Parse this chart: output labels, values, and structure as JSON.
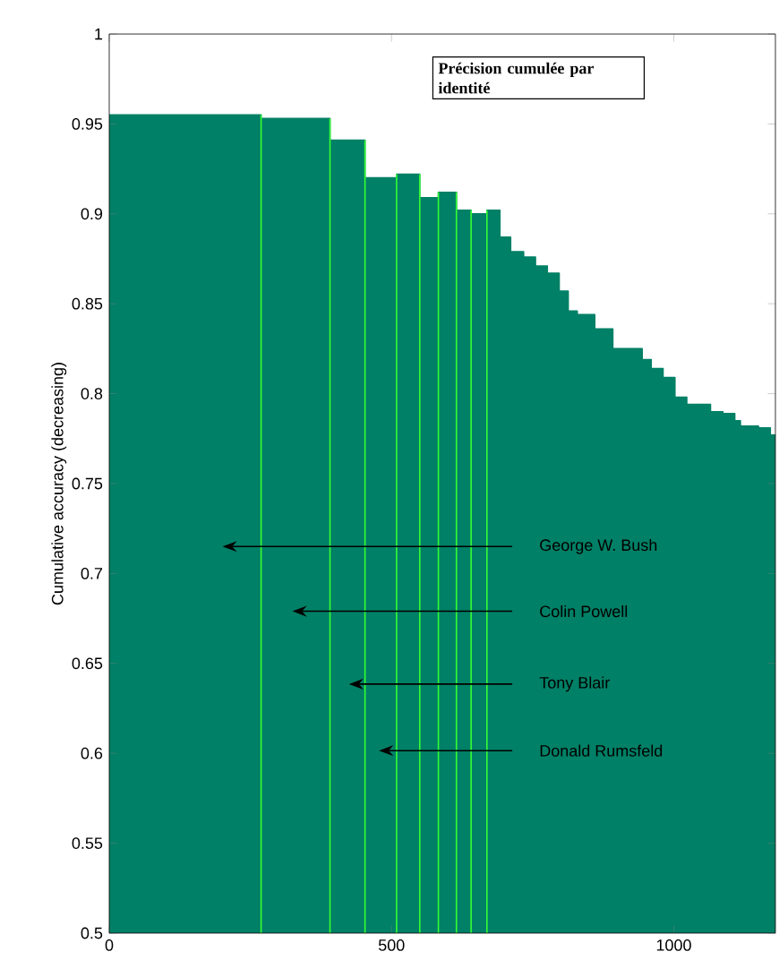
{
  "chart_data": {
    "type": "step",
    "title": "Précision cumulée par identité",
    "ylabel": "Cumulative accuracy (decreasing)",
    "x": [
      0,
      269,
      391,
      453,
      509,
      550,
      583,
      615,
      641,
      669,
      692,
      711,
      734,
      755,
      776,
      797,
      813,
      829,
      860,
      892,
      944,
      960,
      981,
      1002,
      1023,
      1039,
      1065,
      1087,
      1108,
      1118,
      1150,
      1171,
      1180
    ],
    "values": [
      0.955,
      0.953,
      0.941,
      0.92,
      0.922,
      0.909,
      0.912,
      0.902,
      0.9,
      0.902,
      0.887,
      0.879,
      0.876,
      0.871,
      0.867,
      0.857,
      0.846,
      0.844,
      0.836,
      0.825,
      0.819,
      0.814,
      0.809,
      0.798,
      0.794,
      0.794,
      0.79,
      0.789,
      0.785,
      0.782,
      0.781,
      0.777,
      0.777
    ],
    "color": "#008066",
    "xlim": [
      0,
      1180
    ],
    "ylim": [
      0.5,
      1
    ],
    "xticks": [
      0,
      500,
      1000
    ],
    "yticks": [
      0.5,
      0.55,
      0.6,
      0.65,
      0.7,
      0.75,
      0.8,
      0.85,
      0.9,
      0.95,
      1
    ],
    "ref_lines": [
      {
        "axis": "x",
        "value": 269,
        "color": "#33ff33"
      },
      {
        "axis": "x",
        "value": 391,
        "color": "#33ff33"
      },
      {
        "axis": "x",
        "value": 453,
        "color": "#33ff33"
      },
      {
        "axis": "x",
        "value": 509,
        "color": "#33ff33"
      },
      {
        "axis": "x",
        "value": 550,
        "color": "#33ff33"
      },
      {
        "axis": "x",
        "value": 583,
        "color": "#33ff33"
      },
      {
        "axis": "x",
        "value": 615,
        "color": "#33ff33"
      },
      {
        "axis": "x",
        "value": 641,
        "color": "#33ff33"
      },
      {
        "axis": "x",
        "value": 669,
        "color": "#33ff33"
      }
    ],
    "annotations": [
      "George W. Bush",
      "Colin Powell",
      "Tony Blair",
      "Donald Rumsfeld"
    ]
  }
}
